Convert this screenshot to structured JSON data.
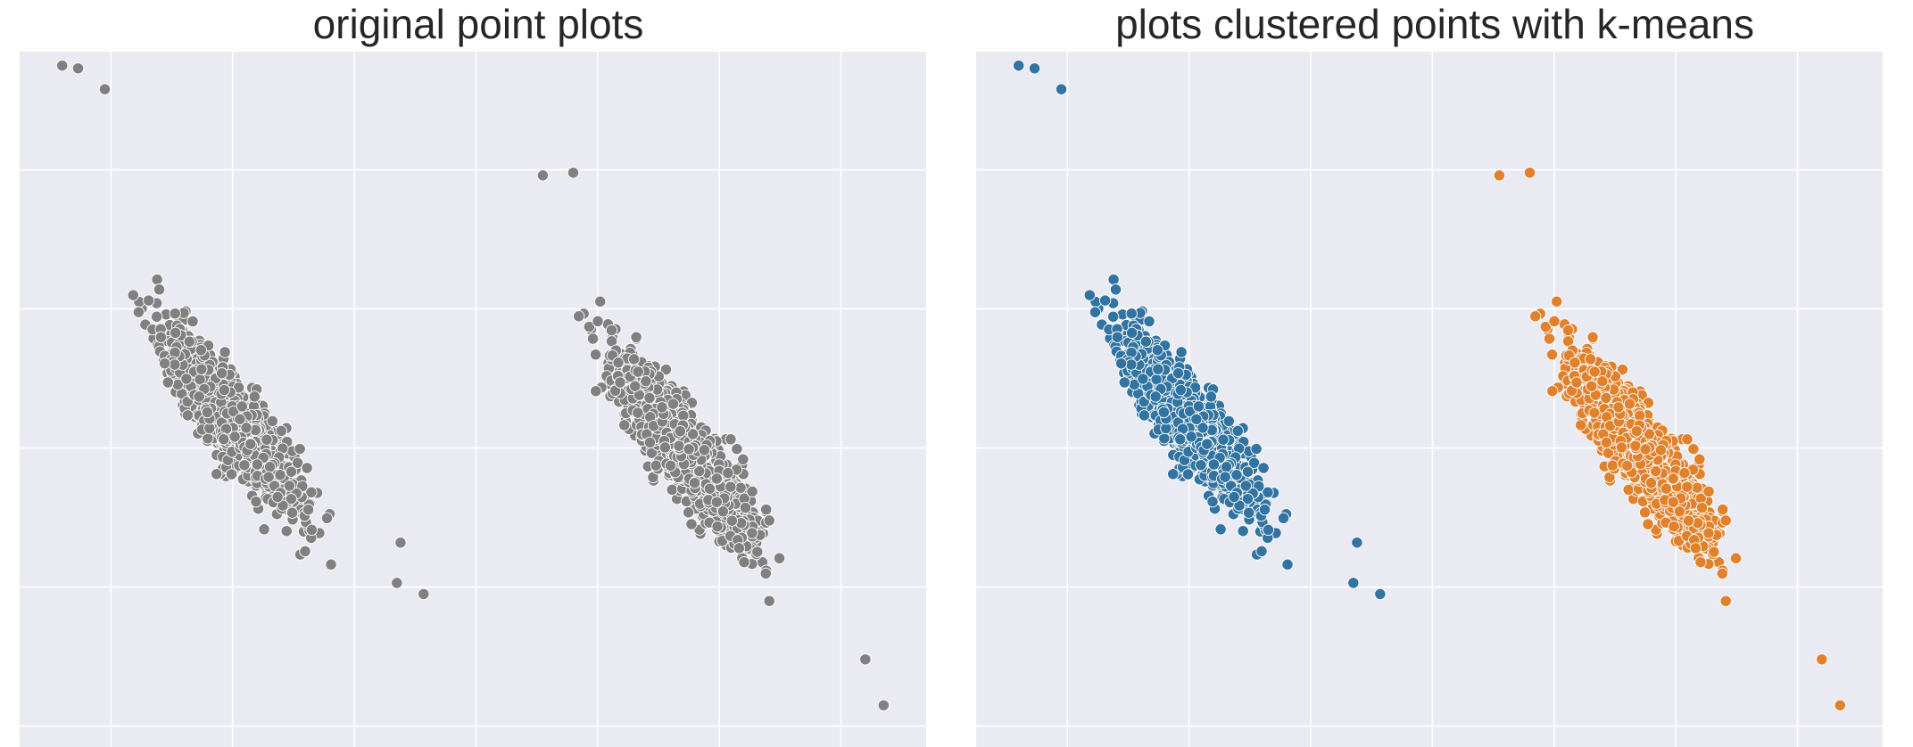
{
  "chart_data": [
    {
      "type": "scatter",
      "title": "original point plots",
      "xlabel": "",
      "ylabel": "",
      "style": "seaborn darkgrid, no tick labels",
      "grid": true,
      "legend": "none",
      "xlim": [
        -0.75,
        6.7
      ],
      "ylim": [
        -1.15,
        3.85
      ],
      "x_gridlines": [
        0,
        1,
        2,
        3,
        4,
        5,
        6
      ],
      "y_gridlines": [
        -1,
        0,
        1,
        2,
        3
      ],
      "colors": {
        "background": "#EAEAF2",
        "grid": "#FFFFFF",
        "points": "#808080",
        "edge": "#FFFFFF"
      },
      "series": [
        {
          "cluster": 1,
          "points": 1700,
          "center": [
            1.0,
            1.2
          ],
          "major_axis": [
            1.0,
            -1.2
          ],
          "spread_along": 0.38,
          "spread_across": 0.1,
          "outliers": [
            [
              -0.4,
              3.75
            ],
            [
              -0.27,
              3.73
            ],
            [
              -0.05,
              3.58
            ],
            [
              2.38,
              0.32
            ],
            [
              2.57,
              -0.05
            ],
            [
              2.35,
              0.03
            ]
          ]
        },
        {
          "cluster": 2,
          "points": 1700,
          "center": [
            4.7,
            1.0
          ],
          "major_axis": [
            1.0,
            -1.2
          ],
          "spread_along": 0.38,
          "spread_across": 0.1,
          "outliers": [
            [
              3.55,
              2.96
            ],
            [
              3.8,
              2.98
            ],
            [
              6.2,
              -0.52
            ],
            [
              6.35,
              -0.85
            ]
          ]
        }
      ]
    },
    {
      "type": "scatter",
      "title": "plots clustered points with k-means",
      "xlabel": "",
      "ylabel": "",
      "style": "seaborn darkgrid, no tick labels",
      "grid": true,
      "legend": "none",
      "xlim": [
        -0.75,
        6.7
      ],
      "ylim": [
        -1.15,
        3.85
      ],
      "x_gridlines": [
        0,
        1,
        2,
        3,
        4,
        5,
        6
      ],
      "y_gridlines": [
        -1,
        0,
        1,
        2,
        3
      ],
      "colors": {
        "background": "#EAEAF2",
        "grid": "#FFFFFF",
        "edge": "#FFFFFF"
      },
      "series": [
        {
          "cluster": 0,
          "color": "#3274A1",
          "points": 1700,
          "center": [
            1.0,
            1.2
          ],
          "major_axis": [
            1.0,
            -1.2
          ],
          "spread_along": 0.38,
          "spread_across": 0.1,
          "outliers": [
            [
              -0.4,
              3.75
            ],
            [
              -0.27,
              3.73
            ],
            [
              -0.05,
              3.58
            ],
            [
              2.38,
              0.32
            ],
            [
              2.57,
              -0.05
            ],
            [
              2.35,
              0.03
            ]
          ]
        },
        {
          "cluster": 1,
          "color": "#E1812C",
          "points": 1700,
          "center": [
            4.7,
            1.0
          ],
          "major_axis": [
            1.0,
            -1.2
          ],
          "spread_along": 0.38,
          "spread_across": 0.1,
          "outliers": [
            [
              3.55,
              2.96
            ],
            [
              3.8,
              2.98
            ],
            [
              6.2,
              -0.52
            ],
            [
              6.35,
              -0.85
            ]
          ]
        }
      ]
    }
  ]
}
